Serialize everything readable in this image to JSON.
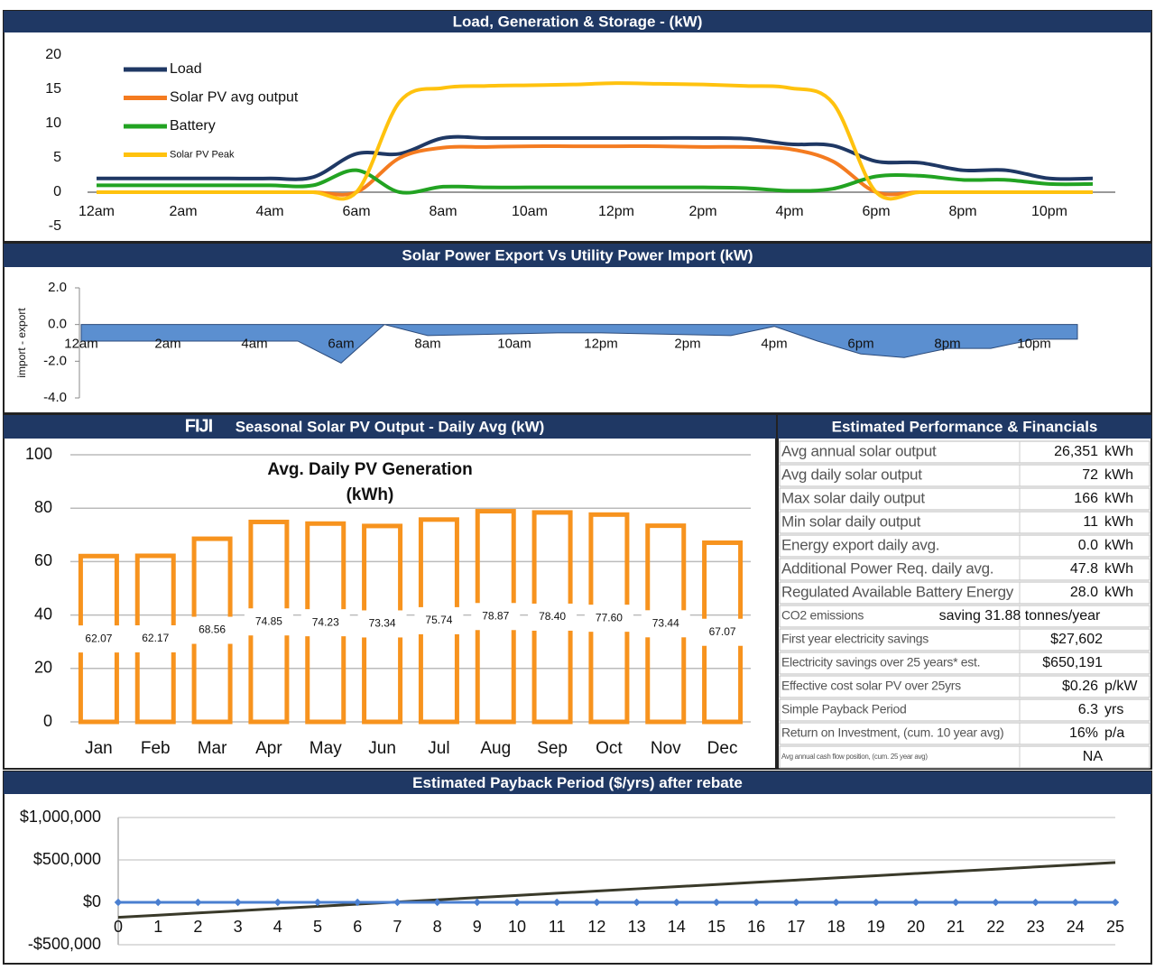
{
  "chart_data": [
    {
      "type": "line",
      "title": "Load, Generation & Storage - (kW)",
      "categories": [
        "12am",
        null,
        "2am",
        null,
        "4am",
        null,
        "6am",
        null,
        "8am",
        null,
        "10am",
        null,
        "12pm",
        null,
        "2pm",
        null,
        "4pm",
        null,
        "6pm",
        null,
        "8pm",
        null,
        "10pm",
        null
      ],
      "series": [
        {
          "name": "Load",
          "color": "#1f3864",
          "values": [
            2,
            2,
            2,
            2,
            2,
            2.2,
            5.6,
            5.6,
            7.9,
            7.9,
            7.9,
            7.9,
            7.9,
            7.9,
            7.9,
            7.8,
            7,
            6.8,
            4.5,
            4.3,
            3.2,
            3.2,
            2,
            2
          ]
        },
        {
          "name": "Solar PV avg output",
          "color": "#f47b20",
          "values": [
            0,
            0,
            0,
            0,
            0,
            0,
            0,
            5,
            6.5,
            6.6,
            6.7,
            6.7,
            6.7,
            6.7,
            6.6,
            6.6,
            6.3,
            4.5,
            0,
            0,
            0,
            0,
            0,
            0
          ]
        },
        {
          "name": "Battery",
          "color": "#22a322",
          "values": [
            1,
            1,
            1,
            1,
            1,
            1,
            3.2,
            0,
            0.8,
            0.7,
            0.7,
            0.7,
            0.7,
            0.7,
            0.7,
            0.6,
            0.2,
            0.5,
            2.3,
            2.4,
            1.8,
            1.8,
            1.2,
            1.2
          ]
        },
        {
          "name": "Solar PV Peak",
          "color": "#ffc20e",
          "values": [
            0,
            0,
            0,
            0,
            0,
            0,
            0,
            13.2,
            15.2,
            15.5,
            15.6,
            15.7,
            15.9,
            15.8,
            15.7,
            15.5,
            15.2,
            13,
            0,
            0,
            0,
            0,
            0,
            0
          ]
        }
      ],
      "ylim": [
        -5,
        20
      ],
      "yticks": [
        -5,
        0,
        5,
        10,
        15,
        20
      ],
      "grid": false,
      "legend": "upper left"
    },
    {
      "type": "area",
      "title": "Solar Power Export Vs Utility Power Import (kW)",
      "y_label": "import - export",
      "categories": [
        "12am",
        null,
        "2am",
        null,
        "4am",
        null,
        "6am",
        null,
        "8am",
        null,
        "10am",
        null,
        "12pm",
        null,
        "2pm",
        null,
        "4pm",
        null,
        "6pm",
        null,
        "8pm",
        null,
        "10pm",
        null
      ],
      "values": [
        -0.9,
        -0.9,
        -0.9,
        -0.9,
        -0.9,
        -0.9,
        -2.1,
        0,
        -0.6,
        -0.55,
        -0.5,
        -0.45,
        -0.45,
        -0.5,
        -0.55,
        -0.6,
        -0.1,
        -0.9,
        -1.6,
        -1.8,
        -1.3,
        -1.3,
        -0.8,
        -0.8
      ],
      "color": "#5b8fd0",
      "ylim": [
        -4,
        2
      ],
      "yticks": [
        {
          "value": -4,
          "label": "-4.0"
        },
        {
          "value": -2,
          "label": "-2.0"
        },
        {
          "value": 0,
          "label": "0.0"
        },
        {
          "value": 2,
          "label": "2.0"
        }
      ],
      "grid": false
    },
    {
      "type": "bar",
      "title": "Seasonal Solar PV Output - Daily Avg (kW)",
      "label": "FIJI",
      "inner_title": "Avg. Daily PV Generation",
      "inner_title_unit": "(kWh)",
      "categories": [
        "Jan",
        "Feb",
        "Mar",
        "Apr",
        "May",
        "Jun",
        "Jul",
        "Aug",
        "Sep",
        "Oct",
        "Nov",
        "Dec"
      ],
      "values": [
        62.07,
        62.17,
        68.56,
        74.85,
        74.23,
        73.34,
        75.74,
        78.87,
        78.4,
        77.6,
        73.44,
        67.07
      ],
      "value_labels": [
        "62.07",
        "62.17",
        "68.56",
        "74.85",
        "74.23",
        "73.34",
        "75.74",
        "78.87",
        "78.40",
        "77.60",
        "73.44",
        "67.07"
      ],
      "color": "#f7931e",
      "ylim": [
        0,
        100
      ],
      "yticks": [
        0,
        20,
        40,
        60,
        80,
        100
      ],
      "grid": true
    },
    {
      "type": "line",
      "title": "Estimated Payback Period ($/yrs) after rebate",
      "x": [
        0,
        1,
        2,
        3,
        4,
        5,
        6,
        7,
        8,
        9,
        10,
        11,
        12,
        13,
        14,
        15,
        16,
        17,
        18,
        19,
        20,
        21,
        22,
        23,
        24,
        25
      ],
      "series": [
        {
          "color": "#3a3a2a",
          "values": [
            -177000,
            -151160,
            -125320,
            -99480,
            -73640,
            -47800,
            -21960,
            3880,
            29720,
            55560,
            81400,
            107240,
            133080,
            158920,
            184760,
            210600,
            236440,
            262280,
            288120,
            313960,
            339800,
            365640,
            391480,
            417320,
            443160,
            469000
          ]
        },
        {
          "color": "#4a7fd0",
          "markers": true,
          "values": [
            0,
            0,
            0,
            0,
            0,
            0,
            0,
            0,
            0,
            0,
            0,
            0,
            0,
            0,
            0,
            0,
            0,
            0,
            0,
            0,
            0,
            0,
            0,
            0,
            0,
            0
          ]
        }
      ],
      "xlim": [
        0,
        25
      ],
      "xticks": [
        0,
        1,
        2,
        3,
        4,
        5,
        6,
        7,
        8,
        9,
        10,
        11,
        12,
        13,
        14,
        15,
        16,
        17,
        18,
        19,
        20,
        21,
        22,
        23,
        24,
        25
      ],
      "ylim": [
        -500000,
        1000000
      ],
      "yticks": [
        {
          "value": -500000,
          "label": "-$500,000"
        },
        {
          "value": 0,
          "label": "$0"
        },
        {
          "value": 500000,
          "label": "$500,000"
        },
        {
          "value": 1000000,
          "label": "$1,000,000"
        }
      ],
      "grid": true
    }
  ],
  "financials": {
    "title": "Estimated Performance & Financials",
    "rows": [
      [
        "Avg annual solar output",
        "26,351",
        "kWh"
      ],
      [
        "Avg daily solar output",
        "72",
        "kWh"
      ],
      [
        "Max solar daily output",
        "166",
        "kWh"
      ],
      [
        "Min solar daily output",
        "11",
        "kWh"
      ],
      [
        "Energy export daily avg.",
        "0.0",
        "kWh"
      ],
      [
        "Additional Power Req. daily avg.",
        "47.8",
        "kWh"
      ],
      [
        "Regulated Available Battery Energy",
        "28.0",
        "kWh"
      ],
      [
        "CO2 emissions",
        "saving 31.88 tonnes/year"
      ],
      [
        "First year electricity savings",
        "$27,602"
      ],
      [
        "Electricity savings over 25 years* est.",
        "$650,191"
      ],
      [
        "Effective cost solar PV over 25yrs",
        "$0.26",
        "p/kW"
      ],
      [
        "Simple Payback Period",
        "6.3",
        "yrs"
      ],
      [
        "Return on Investment, (cum. 10 year avg)",
        "16%",
        "p/a"
      ],
      [
        "Avg annual cash flow position, (cum. 25 year avg)",
        "NA"
      ]
    ]
  }
}
